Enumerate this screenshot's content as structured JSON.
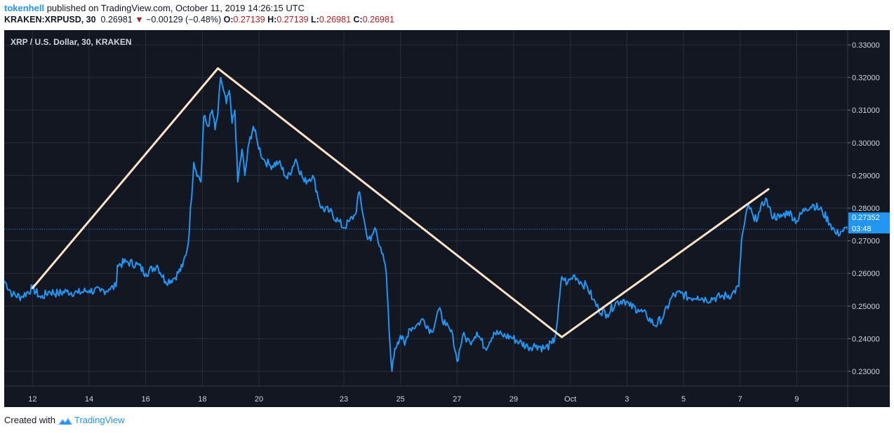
{
  "header": {
    "author": "tokenhell",
    "published": "published on TradingView.com, October 11, 2019 14:26:15 UTC",
    "symbol": "KRAKEN:XRPUSD, 30",
    "last": "0.26981",
    "change_arrow": "▼",
    "change": "−0.00129 (−0.48%)",
    "o_label": "O:",
    "o_value": "0.27139",
    "h_label": "H:",
    "h_value": "0.27139",
    "l_label": "L:",
    "l_value": "0.26981",
    "c_label": "C:",
    "c_value": "0.26981"
  },
  "chart_title": "XRP / U.S. Dollar, 30, KRAKEN",
  "footer": {
    "created": "Created with",
    "brand": "TradingView"
  },
  "colors": {
    "background": "#131722",
    "price_line": "#2196f3",
    "trend_line": "#ffe4c7",
    "grid": "#2a2e39",
    "text": "#d1d4dc"
  },
  "price_label": "0.27352",
  "countdown_label": "03:48",
  "chart_data": {
    "type": "line",
    "title": "XRP / U.S. Dollar, 30, KRAKEN",
    "xlabel": "",
    "ylabel": "",
    "ylim": [
      0.2255,
      0.3345
    ],
    "xlim": [
      11.0,
      40.8
    ],
    "x_unit": "days since Sep 0, 2019 (x=31 is Oct 1)",
    "y_ticks": [
      "0.23000",
      "0.24000",
      "0.25000",
      "0.26000",
      "0.27000",
      "0.28000",
      "0.29000",
      "0.30000",
      "0.31000",
      "0.32000",
      "0.33000"
    ],
    "y_tick_values": [
      0.23,
      0.24,
      0.25,
      0.26,
      0.27,
      0.28,
      0.29,
      0.3,
      0.31,
      0.32,
      0.33
    ],
    "x_ticks": [
      "12",
      "14",
      "16",
      "18",
      "20",
      "23",
      "25",
      "27",
      "29",
      "Oct",
      "3",
      "5",
      "7",
      "9"
    ],
    "x_tick_values": [
      12,
      14,
      16,
      18,
      20,
      23,
      25,
      27,
      29,
      31,
      33,
      35,
      37,
      39
    ],
    "current_price": 0.27352,
    "series": [
      {
        "name": "XRPUSD",
        "x": [
          11.0,
          11.3,
          11.6,
          12.0,
          12.3,
          12.6,
          12.9,
          13.2,
          13.6,
          14.0,
          14.4,
          14.7,
          14.95,
          15.0,
          15.3,
          15.7,
          16.0,
          16.4,
          16.7,
          17.0,
          17.3,
          17.5,
          17.7,
          17.85,
          17.95,
          18.05,
          18.2,
          18.35,
          18.45,
          18.55,
          18.65,
          18.75,
          18.85,
          18.95,
          19.05,
          19.15,
          19.25,
          19.4,
          19.5,
          19.65,
          19.8,
          19.95,
          20.15,
          20.4,
          20.7,
          21.0,
          21.3,
          21.6,
          21.9,
          22.2,
          22.5,
          22.8,
          23.0,
          23.2,
          23.4,
          23.55,
          23.7,
          23.8,
          23.95,
          24.1,
          24.3,
          24.5,
          24.6,
          24.7,
          24.8,
          24.9,
          25.0,
          25.15,
          25.3,
          25.55,
          25.8,
          26.1,
          26.35,
          26.6,
          26.85,
          27.0,
          27.2,
          27.45,
          27.7,
          28.0,
          28.3,
          28.6,
          28.9,
          29.2,
          29.5,
          29.8,
          30.1,
          30.35,
          30.45,
          30.55,
          30.7,
          30.9,
          31.15,
          31.4,
          31.6,
          31.8,
          32.0,
          32.3,
          32.6,
          32.9,
          33.1,
          33.4,
          33.7,
          34.0,
          34.3,
          34.6,
          34.9,
          35.2,
          35.5,
          35.8,
          36.1,
          36.4,
          36.7,
          36.95,
          37.05,
          37.15,
          37.3,
          37.5,
          37.7,
          37.9,
          38.1,
          38.4,
          38.7,
          39.0,
          39.3,
          39.6,
          39.9,
          40.2,
          40.4,
          40.6,
          40.8
        ],
        "values": [
          0.2578,
          0.2535,
          0.2528,
          0.2555,
          0.2525,
          0.2545,
          0.2538,
          0.2545,
          0.254,
          0.2548,
          0.2545,
          0.2552,
          0.256,
          0.2625,
          0.2635,
          0.2628,
          0.26,
          0.2625,
          0.2575,
          0.2585,
          0.262,
          0.269,
          0.294,
          0.29,
          0.288,
          0.308,
          0.305,
          0.31,
          0.304,
          0.309,
          0.32,
          0.316,
          0.312,
          0.316,
          0.306,
          0.31,
          0.288,
          0.298,
          0.29,
          0.3,
          0.305,
          0.3,
          0.295,
          0.293,
          0.294,
          0.289,
          0.295,
          0.288,
          0.29,
          0.28,
          0.279,
          0.276,
          0.274,
          0.276,
          0.278,
          0.285,
          0.277,
          0.272,
          0.27,
          0.274,
          0.268,
          0.26,
          0.242,
          0.23,
          0.237,
          0.239,
          0.241,
          0.238,
          0.243,
          0.244,
          0.246,
          0.242,
          0.249,
          0.244,
          0.241,
          0.233,
          0.241,
          0.239,
          0.242,
          0.237,
          0.242,
          0.241,
          0.2405,
          0.239,
          0.2375,
          0.238,
          0.237,
          0.2385,
          0.24,
          0.246,
          0.259,
          0.257,
          0.2595,
          0.257,
          0.256,
          0.252,
          0.249,
          0.2475,
          0.251,
          0.252,
          0.25,
          0.249,
          0.247,
          0.244,
          0.247,
          0.253,
          0.254,
          0.2525,
          0.253,
          0.252,
          0.2525,
          0.253,
          0.2535,
          0.256,
          0.27,
          0.275,
          0.281,
          0.276,
          0.279,
          0.283,
          0.278,
          0.277,
          0.279,
          0.276,
          0.28,
          0.281,
          0.279,
          0.275,
          0.272,
          0.273,
          0.2735
        ]
      }
    ],
    "trend_lines": [
      {
        "x": [
          12.0,
          18.55
        ],
        "y": [
          0.2555,
          0.3228
        ]
      },
      {
        "x": [
          18.55,
          30.7
        ],
        "y": [
          0.3228,
          0.2405
        ]
      },
      {
        "x": [
          30.7,
          38.0
        ],
        "y": [
          0.2405,
          0.2858
        ]
      }
    ]
  }
}
